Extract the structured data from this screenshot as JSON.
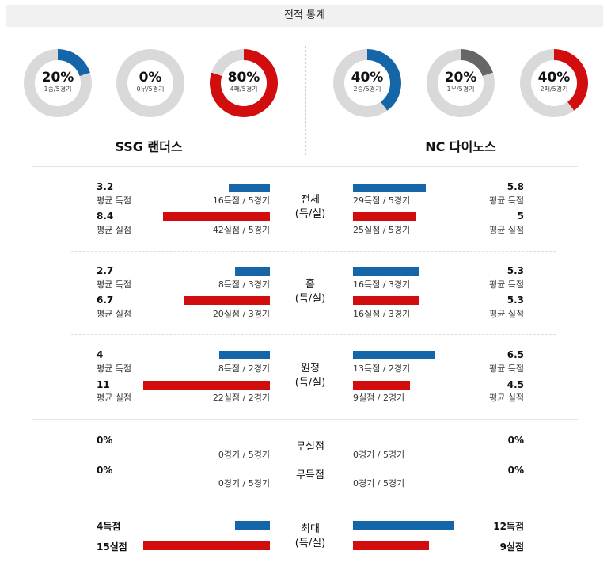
{
  "title": "전적 통계",
  "teams": {
    "left": {
      "name": "SSG 랜더스",
      "donuts": [
        {
          "pct": "20%",
          "sub": "1승/5경기",
          "fraction": 0.2,
          "color": "#1565a9"
        },
        {
          "pct": "0%",
          "sub": "0무/5경기",
          "fraction": 0.0,
          "color": "#666666"
        },
        {
          "pct": "80%",
          "sub": "4패/5경기",
          "fraction": 0.8,
          "color": "#d10d0d"
        }
      ]
    },
    "right": {
      "name": "NC 다이노스",
      "donuts": [
        {
          "pct": "40%",
          "sub": "2승/5경기",
          "fraction": 0.4,
          "color": "#1565a9"
        },
        {
          "pct": "20%",
          "sub": "1무/5경기",
          "fraction": 0.2,
          "color": "#666666"
        },
        {
          "pct": "40%",
          "sub": "2패/5경기",
          "fraction": 0.4,
          "color": "#d10d0d"
        }
      ]
    }
  },
  "sections": {
    "total": {
      "label": "전체\n(득/실)",
      "left": {
        "scored_avg": "3.2",
        "scored_label": "평균 득점",
        "scored_count": "16득점 / 5경기",
        "allowed_avg": "8.4",
        "allowed_label": "평균 실점",
        "allowed_count": "42실점 / 5경기"
      },
      "right": {
        "scored_avg": "5.8",
        "scored_label": "평균 득점",
        "scored_count": "29득점 / 5경기",
        "allowed_avg": "5",
        "allowed_label": "평균 실점",
        "allowed_count": "25실점 / 5경기"
      }
    },
    "home": {
      "label": "홈\n(득/실)",
      "left": {
        "scored_avg": "2.7",
        "scored_label": "평균 득점",
        "scored_count": "8득점 / 3경기",
        "allowed_avg": "6.7",
        "allowed_label": "평균 실점",
        "allowed_count": "20실점 / 3경기"
      },
      "right": {
        "scored_avg": "5.3",
        "scored_label": "평균 득점",
        "scored_count": "16득점 / 3경기",
        "allowed_avg": "5.3",
        "allowed_label": "평균 실점",
        "allowed_count": "16실점 / 3경기"
      }
    },
    "away": {
      "label": "원정\n(득/실)",
      "left": {
        "scored_avg": "4",
        "scored_label": "평균 득점",
        "scored_count": "8득점 / 2경기",
        "allowed_avg": "11",
        "allowed_label": "평균 실점",
        "allowed_count": "22실점 / 2경기"
      },
      "right": {
        "scored_avg": "6.5",
        "scored_label": "평균 득점",
        "scored_count": "13득점 / 2경기",
        "allowed_avg": "4.5",
        "allowed_label": "평균 실점",
        "allowed_count": "9실점 / 2경기"
      }
    },
    "shutout": {
      "label1": "무실점",
      "label2": "무득점",
      "left": {
        "no_allowed_pct": "0%",
        "no_allowed_count": "0경기 / 5경기",
        "no_scored_pct": "0%",
        "no_scored_count": "0경기 / 5경기"
      },
      "right": {
        "no_allowed_pct": "0%",
        "no_allowed_count": "0경기 / 5경기",
        "no_scored_pct": "0%",
        "no_scored_count": "0경기 / 5경기"
      }
    },
    "max": {
      "label": "최대\n(득/실)",
      "left": {
        "max_scored": "4득점",
        "max_allowed": "15실점"
      },
      "right": {
        "max_scored": "12득점",
        "max_allowed": "9실점"
      }
    }
  },
  "colors": {
    "scored": "#1565a9",
    "allowed": "#d10d0d",
    "ring_bg": "#d9d9d9"
  }
}
